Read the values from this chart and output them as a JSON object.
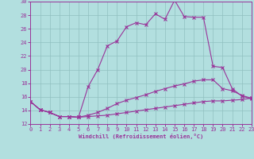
{
  "xlabel": "Windchill (Refroidissement éolien,°C)",
  "xlim": [
    0,
    23
  ],
  "ylim": [
    12,
    30
  ],
  "xticks": [
    0,
    1,
    2,
    3,
    4,
    5,
    6,
    7,
    8,
    9,
    10,
    11,
    12,
    13,
    14,
    15,
    16,
    17,
    18,
    19,
    20,
    21,
    22,
    23
  ],
  "yticks": [
    12,
    14,
    16,
    18,
    20,
    22,
    24,
    26,
    28,
    30
  ],
  "bg_color": "#b2dfdf",
  "grid_color": "#90c0c0",
  "line_color": "#993399",
  "curve1_y": [
    15.3,
    14.1,
    13.7,
    13.1,
    13.1,
    13.0,
    17.5,
    20.0,
    23.5,
    24.2,
    26.3,
    26.9,
    26.6,
    28.2,
    27.4,
    30.2,
    27.8,
    27.7,
    27.7,
    20.5,
    20.3,
    17.2,
    16.1,
    15.7
  ],
  "curve2_y": [
    15.3,
    14.1,
    13.7,
    13.1,
    13.1,
    13.0,
    13.3,
    13.7,
    14.3,
    15.0,
    15.5,
    15.9,
    16.3,
    16.8,
    17.2,
    17.6,
    17.9,
    18.3,
    18.5,
    18.5,
    17.2,
    16.9,
    16.2,
    15.8
  ],
  "curve3_y": [
    15.3,
    14.1,
    13.7,
    13.1,
    13.1,
    13.0,
    13.1,
    13.2,
    13.3,
    13.5,
    13.7,
    13.9,
    14.1,
    14.3,
    14.5,
    14.7,
    14.9,
    15.1,
    15.3,
    15.4,
    15.4,
    15.5,
    15.6,
    15.8
  ]
}
